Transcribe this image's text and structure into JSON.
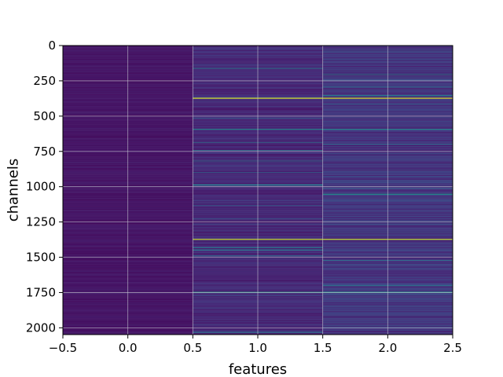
{
  "chart_data": {
    "type": "heatmap",
    "title": "",
    "xlabel": "features",
    "ylabel": "channels",
    "xlim": [
      -0.5,
      2.5
    ],
    "ylim": [
      2048,
      0
    ],
    "y_inverted": true,
    "grid": true,
    "colormap": "viridis",
    "rows": 2048,
    "columns": [
      0,
      1,
      2
    ],
    "x_ticks": [
      -0.5,
      0.0,
      0.5,
      1.0,
      1.5,
      2.0,
      2.5
    ],
    "x_tick_labels": [
      "−0.5",
      "0.0",
      "0.5",
      "1.0",
      "1.5",
      "2.0",
      "2.5"
    ],
    "y_ticks": [
      0,
      250,
      500,
      750,
      1000,
      1250,
      1500,
      1750,
      2000
    ],
    "y_tick_labels": [
      "0",
      "250",
      "500",
      "750",
      "1000",
      "1250",
      "1500",
      "1750",
      "2000"
    ],
    "column_base_intensity": [
      0.06,
      0.12,
      0.16
    ],
    "highlight_rows": [
      {
        "row": 370,
        "columns": [
          1,
          2
        ],
        "intensity": 0.95
      },
      {
        "row": 1370,
        "columns": [
          1,
          2
        ],
        "intensity": 0.92
      },
      {
        "row": 1745,
        "columns": [
          1,
          2
        ],
        "intensity": 0.55
      },
      {
        "row": 1050,
        "columns": [
          2
        ],
        "intensity": 0.5
      },
      {
        "row": 590,
        "columns": [
          1,
          2
        ],
        "intensity": 0.45
      }
    ]
  }
}
